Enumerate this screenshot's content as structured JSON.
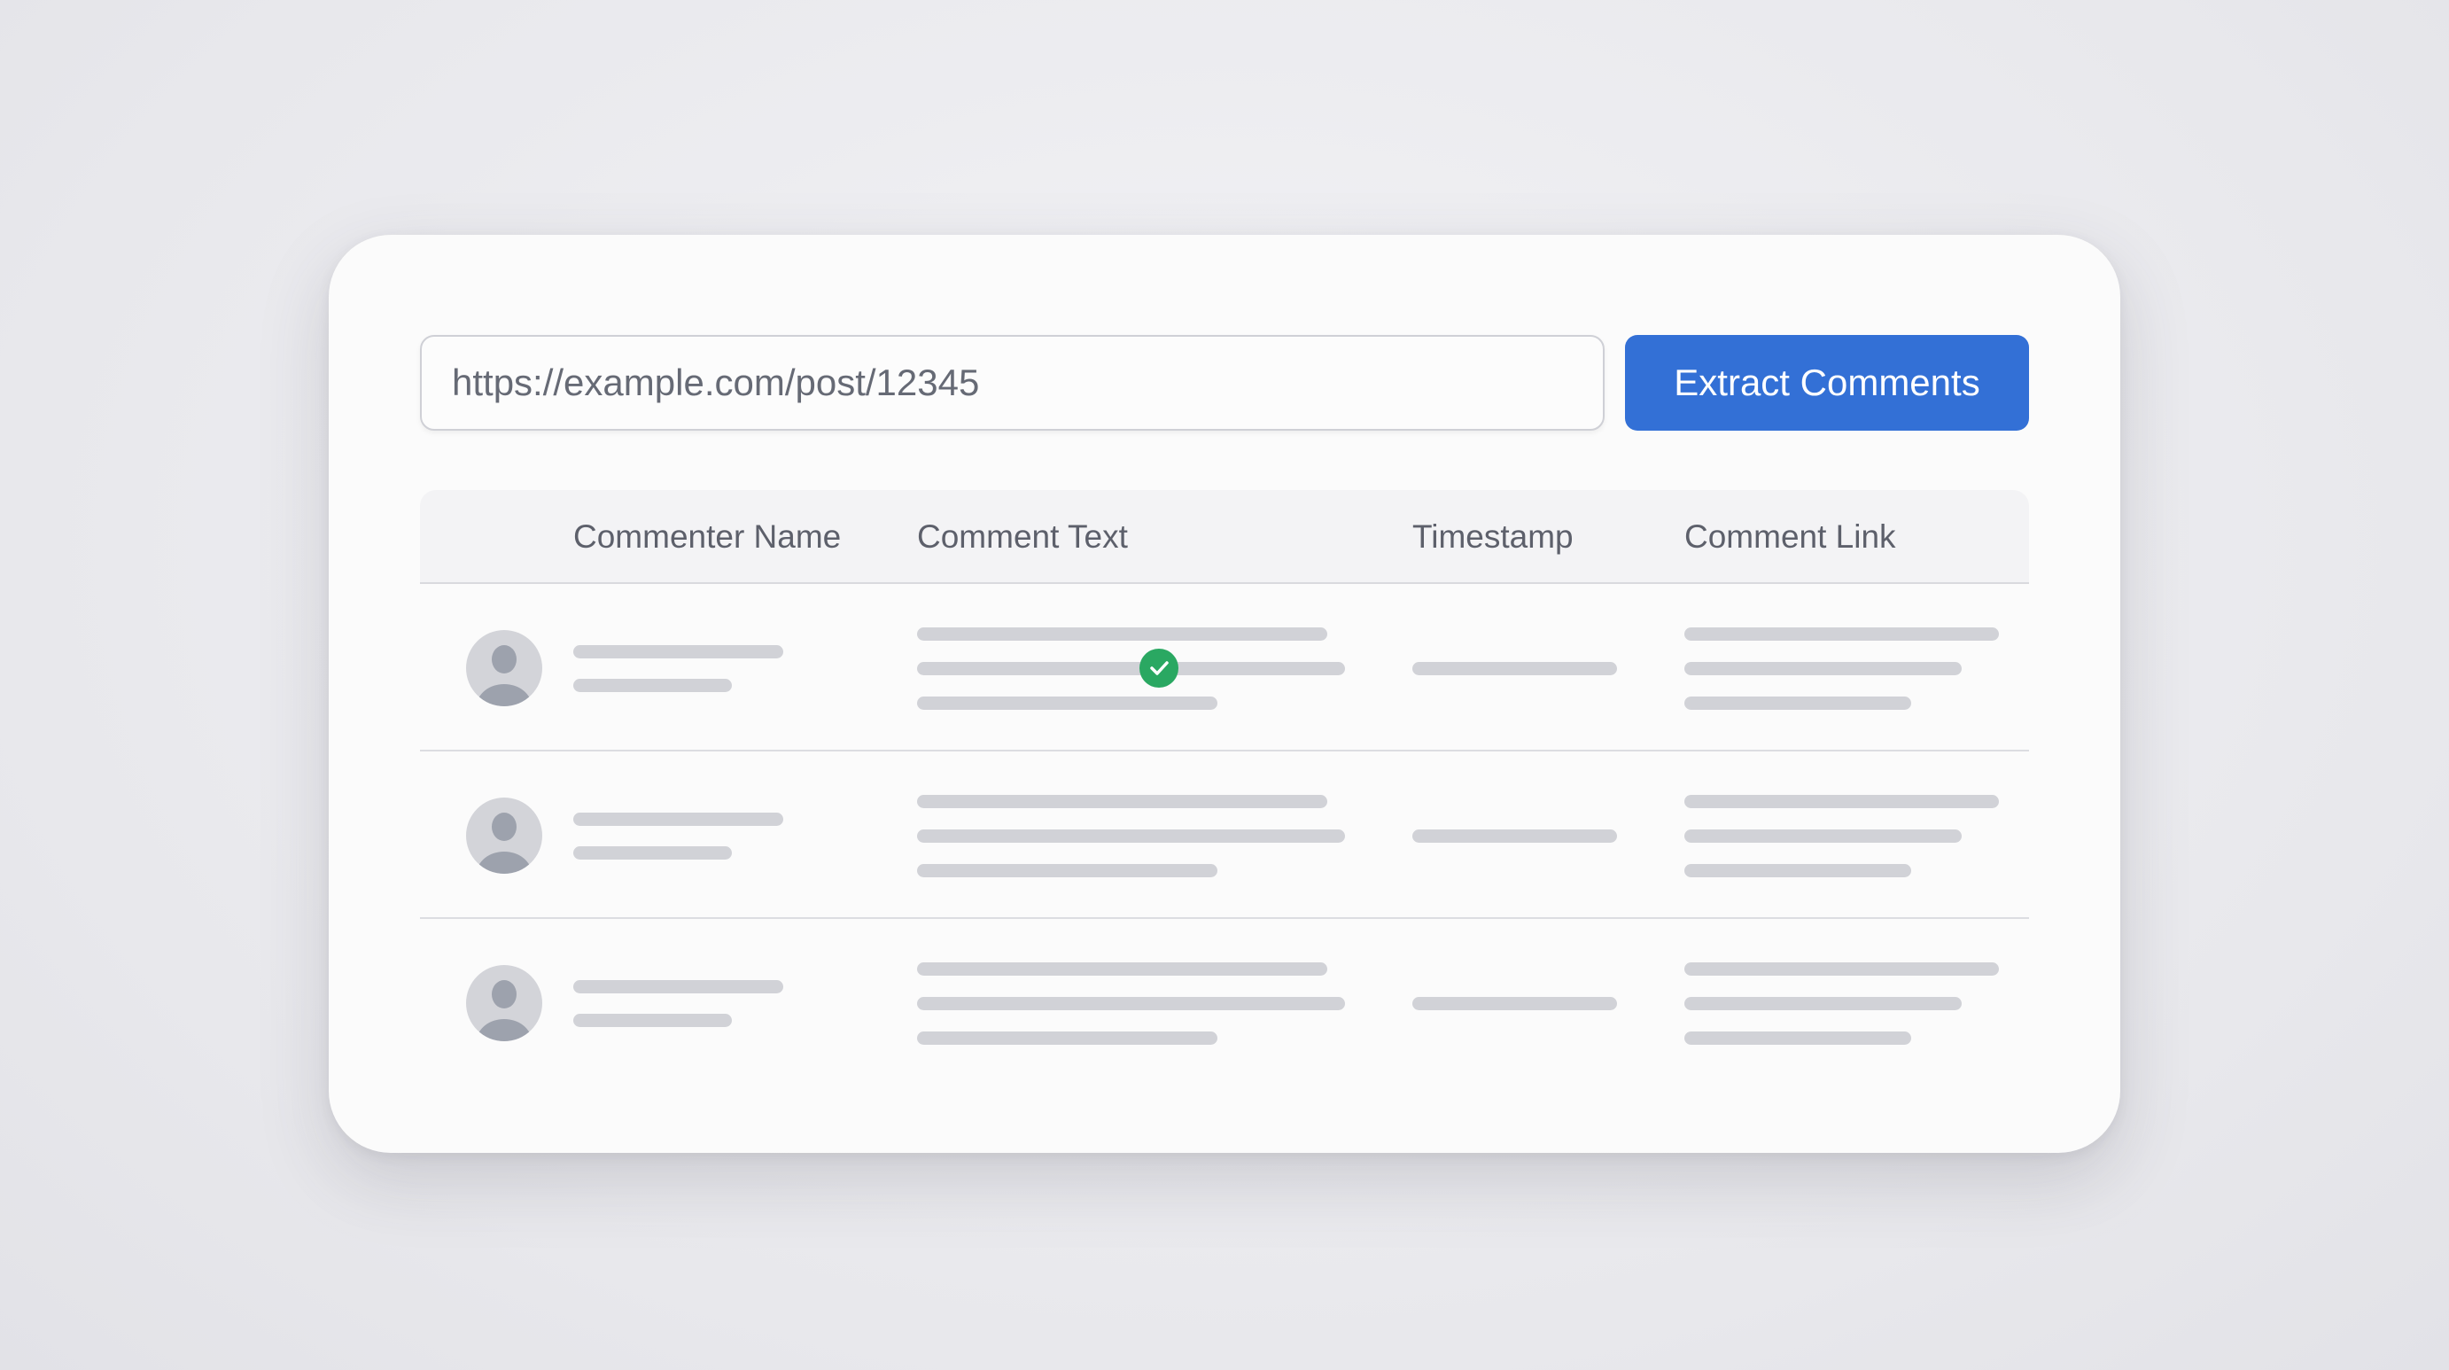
{
  "url_input": {
    "value": "https://example.com/post/12345"
  },
  "extract_button": {
    "label": "Extract Comments",
    "color": "#3370d6"
  },
  "table": {
    "headers": [
      "Commenter Name",
      "Comment Text",
      "Timestamp",
      "Comment Link"
    ],
    "rows": [
      {
        "state": "loading-placeholder",
        "verified": true
      },
      {
        "state": "loading-placeholder",
        "verified": false
      },
      {
        "state": "loading-placeholder",
        "verified": false
      }
    ]
  },
  "colors": {
    "verified": "#2aa862",
    "placeholder": "#d1d2d7"
  },
  "icons": {
    "avatar": "user-avatar-icon",
    "verified": "check-circle-icon"
  }
}
